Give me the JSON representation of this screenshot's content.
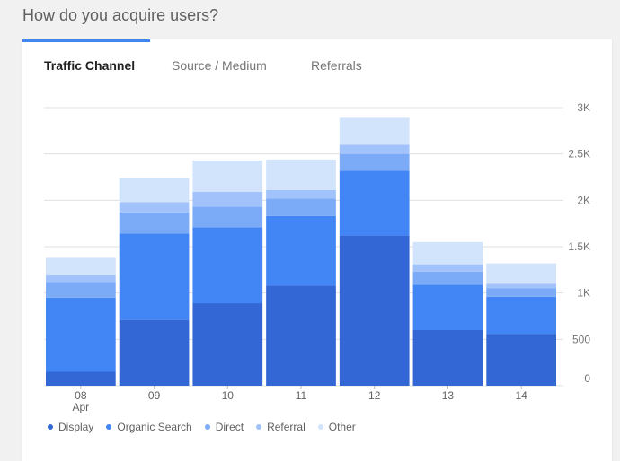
{
  "page_title": "How do you acquire users?",
  "tabs": [
    {
      "label": "Traffic Channel",
      "active": true
    },
    {
      "label": "Source / Medium",
      "active": false
    },
    {
      "label": "Referrals",
      "active": false
    }
  ],
  "chart_data": {
    "type": "bar",
    "stacked": true,
    "categories": [
      "08",
      "09",
      "10",
      "11",
      "12",
      "13",
      "14"
    ],
    "category_sublabels": [
      "Apr",
      "",
      "",
      "",
      "",
      "",
      ""
    ],
    "series": [
      {
        "name": "Display",
        "values": [
          150,
          710,
          890,
          1080,
          1620,
          600,
          560
        ],
        "color": "#3367d6"
      },
      {
        "name": "Organic Search",
        "values": [
          800,
          930,
          820,
          750,
          700,
          490,
          400
        ],
        "color": "#4285f4"
      },
      {
        "name": "Direct",
        "values": [
          170,
          230,
          220,
          190,
          180,
          140,
          90
        ],
        "color": "#7baaf7"
      },
      {
        "name": "Referral",
        "values": [
          70,
          110,
          160,
          90,
          100,
          80,
          50
        ],
        "color": "#a1c2fa"
      },
      {
        "name": "Other",
        "values": [
          190,
          260,
          340,
          330,
          290,
          240,
          220
        ],
        "color": "#d2e3fc"
      }
    ],
    "y_ticks": [
      "0",
      "500",
      "1K",
      "1.5K",
      "2K",
      "2.5K",
      "3K"
    ],
    "ylim": [
      0,
      3000
    ],
    "y_axis_side": "right",
    "grid": true,
    "legend_position": "bottom-left"
  }
}
